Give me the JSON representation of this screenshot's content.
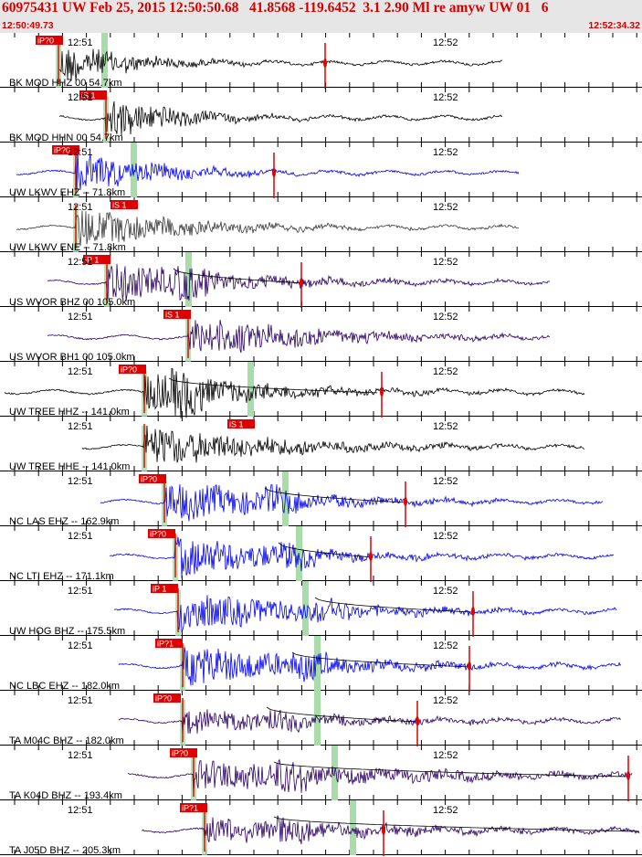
{
  "header": {
    "title": "60975431 UW Feb 25, 2015 12:50:50.68   41.8568 -119.6452  3.1 2.90 Ml re amyw UW 01   6",
    "time_start": "12:50:49.73",
    "time_end": "12:52:34.32"
  },
  "colors": {
    "header_bg": "#e6e6e6",
    "header_text": "#d40000",
    "pick": "#e00000",
    "travel_time_curve": "#000000",
    "phase_band": "#a8dca8",
    "wave_black": "#000000",
    "wave_blue": "#0000ee",
    "wave_gray": "#3a3a3a",
    "wave_purple": "#2a0066"
  },
  "tracks": [
    {
      "label": "BK MOD HHZ 00 54.7km",
      "min1": "12:51",
      "min2": "12:52",
      "color": "black",
      "pick": "iP?0",
      "s": 65,
      "p": 64,
      "e": 550,
      "a": 0.95,
      "pk": 40,
      "decay": 80,
      "g": [
        114
      ],
      "g2": [
        0,
        0
      ],
      "sp": [
        356
      ],
      "ampl": 1.0
    },
    {
      "label": "BK MOD HHN 00 54.7km",
      "min1": "12:51",
      "min2": "12:52",
      "color": "black",
      "pick": "iS 1",
      "s": 65,
      "p": 116,
      "e": 550,
      "a": 0.95,
      "pk": 88,
      "decay": 80,
      "g": [],
      "g2": [
        0,
        0
      ],
      "sp": [],
      "ampl": 1.0
    },
    {
      "label": "UW LKWV EHZ -- 71.8km",
      "min1": "12:51",
      "min2": "12:52",
      "color": "blue",
      "pick": "iP?0",
      "s": 18,
      "p": 83,
      "e": 568,
      "a": 0.95,
      "pk": 58,
      "decay": 90,
      "g": [
        146
      ],
      "g2": [
        0,
        0
      ],
      "sp": [
        300
      ],
      "ampl": 1.0
    },
    {
      "label": "UW LKWV ENE -- 71.8km",
      "min1": "12:51",
      "min2": "12:52",
      "color": "gray",
      "pick": "iS 1",
      "s": 18,
      "p": 83,
      "e": 568,
      "a": 0.95,
      "pk": 122,
      "decay": 110,
      "g": [],
      "g2": [
        0,
        0
      ],
      "sp": [],
      "ampl": 1.0
    },
    {
      "label": "US WVOR BHZ 00 105.0km",
      "min1": "12:51",
      "min2": "12:52",
      "color": "purple",
      "pick": "iP 1",
      "s": 52,
      "p": 117,
      "e": 602,
      "a": 0.9,
      "pk": 92,
      "decay": 140,
      "g": [
        206
      ],
      "g2": [
        190,
        335
      ],
      "sp": [
        330
      ],
      "ampl": 1.0
    },
    {
      "label": "US WVOR BH1 00 105.0km",
      "min1": "12:51",
      "min2": "12:52",
      "color": "purple",
      "pick": "iS 1",
      "s": 52,
      "p": 206,
      "e": 602,
      "a": 0.9,
      "pk": 180,
      "decay": 140,
      "g": [],
      "g2": [
        0,
        0
      ],
      "sp": [],
      "ampl": 1.0
    },
    {
      "label": "UW TREE HHZ -- 141.0km",
      "min1": "12:51",
      "min2": "12:52",
      "color": "black",
      "pick": "iP?0",
      "s": 5,
      "p": 158,
      "e": 640,
      "a": 0.9,
      "pk": 131,
      "decay": 130,
      "g": [
        274
      ],
      "g2": [
        185,
        415
      ],
      "sp": [
        418
      ],
      "ampl": 1.0
    },
    {
      "label": "UW TREE HHE -- 141.0km",
      "min1": "12:51",
      "min2": "12:52",
      "color": "black",
      "pick": "iS 1",
      "s": 90,
      "p": 158,
      "e": 640,
      "a": 0.9,
      "pk": 250,
      "decay": 150,
      "g": [],
      "g2": [
        0,
        0
      ],
      "sp": [],
      "ampl": 1.0
    },
    {
      "label": "NC LAS EHZ -- 162.9km",
      "min1": "12:51",
      "min2": "12:52",
      "color": "blue",
      "pick": "iP?0",
      "s": 110,
      "p": 180,
      "e": 660,
      "a": 0.92,
      "pk": 153,
      "decay": 140,
      "g": [
        312
      ],
      "g2": [
        290,
        445
      ],
      "sp": [
        444
      ],
      "ampl": 1.0
    },
    {
      "label": "NC LTI EHZ -- 171.1km",
      "min1": "12:51",
      "min2": "12:52",
      "color": "blue",
      "pick": "iP?0",
      "s": 120,
      "p": 192,
      "e": 672,
      "a": 0.92,
      "pk": 163,
      "decay": 140,
      "g": [
        327
      ],
      "g2": [
        305,
        410
      ],
      "sp": [
        406
      ],
      "ampl": 1.0
    },
    {
      "label": "UW HOG BHZ -- 175.5km",
      "min1": "12:51",
      "min2": "12:52",
      "color": "blue",
      "pick": "iP 1",
      "s": 125,
      "p": 195,
      "e": 675,
      "a": 0.95,
      "pk": 166,
      "decay": 150,
      "g": [
        334
      ],
      "g2": [
        345,
        518
      ],
      "sp": [
        518
      ],
      "ampl": 1.0
    },
    {
      "label": "NC LBC EHZ -- 182.0km",
      "min1": "12:51",
      "min2": "12:52",
      "color": "blue",
      "pick": "iP?1",
      "s": 130,
      "p": 200,
      "e": 680,
      "a": 0.9,
      "pk": 171,
      "decay": 160,
      "g": [
        347
      ],
      "g2": [
        320,
        515
      ],
      "sp": [
        514
      ],
      "ampl": 1.0
    },
    {
      "label": "TA M04C BHZ -- 182.0km",
      "min1": "12:51",
      "min2": "12:52",
      "color": "purple",
      "pick": "iP?0",
      "s": 130,
      "p": 200,
      "e": 680,
      "a": 0.55,
      "pk": 169,
      "decay": 170,
      "g": [
        347
      ],
      "g2": [
        292,
        458
      ],
      "sp": [
        457
      ],
      "ampl": 1.0
    },
    {
      "label": "TA K04D BHZ -- 193.4km",
      "min1": "12:51",
      "min2": "12:52",
      "color": "purple",
      "pick": "iP?0",
      "s": 140,
      "p": 212,
      "e": 692,
      "a": 0.7,
      "pk": 187,
      "decay": 240,
      "g": [
        366
      ],
      "g2": [
        300,
        688
      ],
      "sp": [
        688
      ],
      "ampl": 0.9
    },
    {
      "label": "TA J05D BHZ -- 205.3km",
      "min1": "12:51",
      "min2": "12:52",
      "color": "purple",
      "pick": "iP?1",
      "s": 155,
      "p": 224,
      "e": 700,
      "a": 0.6,
      "pk": 198,
      "decay": 200,
      "g": [
        386
      ],
      "g2": [
        300,
        700
      ],
      "sp": [
        420
      ],
      "ampl": 0.9
    }
  ]
}
